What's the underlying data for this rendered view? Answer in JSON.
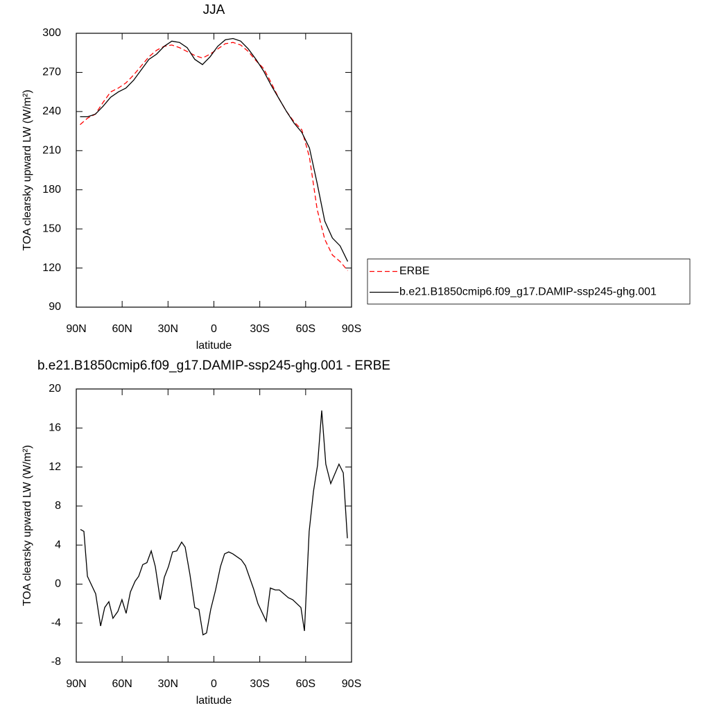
{
  "chart_data": [
    {
      "type": "line",
      "title": "JJA",
      "xlabel": "latitude",
      "ylabel": "TOA clearsky upward LW (W/m²)",
      "x": [
        87.5,
        82.5,
        77.5,
        72.5,
        67.5,
        62.5,
        57.5,
        52.5,
        47.5,
        42.5,
        37.5,
        32.5,
        27.5,
        22.5,
        17.5,
        12.5,
        7.5,
        2.5,
        -2.5,
        -7.5,
        -12.5,
        -17.5,
        -22.5,
        -27.5,
        -32.5,
        -37.5,
        -42.5,
        -47.5,
        -52.5,
        -57.5,
        -62.5,
        -67.5,
        -72.5,
        -77.5,
        -82.5,
        -87.5
      ],
      "series": [
        {
          "name": "ERBE",
          "color": "#ff0000",
          "dashed": true,
          "values": [
            230,
            235,
            238,
            247,
            255,
            258,
            262,
            268,
            275,
            282,
            287,
            290,
            291,
            289,
            286,
            283,
            281,
            284,
            288,
            292,
            293,
            291,
            286,
            279,
            273,
            262,
            250,
            240,
            232,
            226,
            205,
            165,
            142,
            130,
            125,
            118
          ]
        },
        {
          "name": "b.e21.B1850cmip6.f09_g17.DAMIP-ssp245-ghg.001",
          "color": "#000000",
          "dashed": false,
          "values": [
            236,
            236,
            238,
            244,
            251,
            255,
            258,
            264,
            272,
            280,
            284,
            290,
            294,
            293,
            289,
            280,
            276,
            282,
            290,
            295,
            296,
            294,
            288,
            280,
            271,
            260,
            250,
            240,
            231,
            224,
            212,
            185,
            156,
            143,
            137,
            125
          ]
        }
      ],
      "xlim": [
        90,
        -90
      ],
      "xticks": [
        {
          "value": 90,
          "label": "90N"
        },
        {
          "value": 60,
          "label": "60N"
        },
        {
          "value": 30,
          "label": "30N"
        },
        0,
        {
          "value": -30,
          "label": "30S"
        },
        {
          "value": -60,
          "label": "60S"
        },
        {
          "value": -90,
          "label": "90S"
        }
      ],
      "ylim": [
        90,
        300
      ],
      "yticks": [
        90,
        120,
        150,
        180,
        210,
        240,
        270,
        300
      ],
      "legend": "right"
    },
    {
      "type": "line",
      "title": "b.e21.B1850cmip6.f09_g17.DAMIP-ssp245-ghg.001 - ERBE",
      "xlabel": "latitude",
      "ylabel": "TOA clearsky upward LW (W/m²)",
      "x": [
        87.3,
        85.0,
        82.7,
        77.3,
        74.1,
        71.4,
        68.7,
        66.0,
        62.8,
        60.1,
        57.4,
        54.6,
        51.5,
        49.2,
        46.5,
        43.8,
        41.0,
        38.3,
        35.1,
        32.4,
        29.7,
        27.0,
        24.3,
        21.1,
        18.8,
        15.7,
        12.5,
        9.8,
        7.1,
        4.8,
        2.1,
        -1.1,
        -4.3,
        -7.0,
        -9.7,
        -12.4,
        -17.9,
        -20.6,
        -26.0,
        -28.8,
        -34.2,
        -36.9,
        -40.1,
        -42.8,
        -48.7,
        -51.5,
        -56.9,
        -59.2,
        -62.3,
        -65.1,
        -67.8,
        -70.5,
        -73.2,
        -76.4,
        -81.8,
        -84.6,
        -87.3
      ],
      "values": [
        5.6,
        5.4,
        0.8,
        -1,
        -4.3,
        -2.4,
        -1.8,
        -3.5,
        -2.8,
        -1.6,
        -3,
        -0.8,
        0.3,
        0.8,
        2,
        2.2,
        3.4,
        1.8,
        -1.6,
        0.7,
        1.8,
        3.3,
        3.4,
        4.3,
        3.8,
        1,
        -2.4,
        -2.6,
        -5.2,
        -5,
        -2.6,
        -0.6,
        1.8,
        3.1,
        3.3,
        3.1,
        2.5,
        1.9,
        -0.5,
        -2,
        -3.8,
        -0.4,
        -0.6,
        -0.6,
        -1.4,
        -1.6,
        -2.4,
        -4.8,
        5.4,
        9.5,
        12.2,
        17.8,
        12.3,
        10.3,
        12.3,
        11.4,
        4.7
      ],
      "color": "#000000",
      "xlim": [
        90,
        -90
      ],
      "xticks": [
        {
          "value": 90,
          "label": "90N"
        },
        {
          "value": 60,
          "label": "60N"
        },
        {
          "value": 30,
          "label": "30N"
        },
        0,
        {
          "value": -30,
          "label": "30S"
        },
        {
          "value": -60,
          "label": "60S"
        },
        {
          "value": -90,
          "label": "90S"
        }
      ],
      "ylim": [
        -8,
        20
      ],
      "yticks": [
        -8,
        -4,
        0,
        4,
        8,
        12,
        16,
        20
      ]
    }
  ]
}
